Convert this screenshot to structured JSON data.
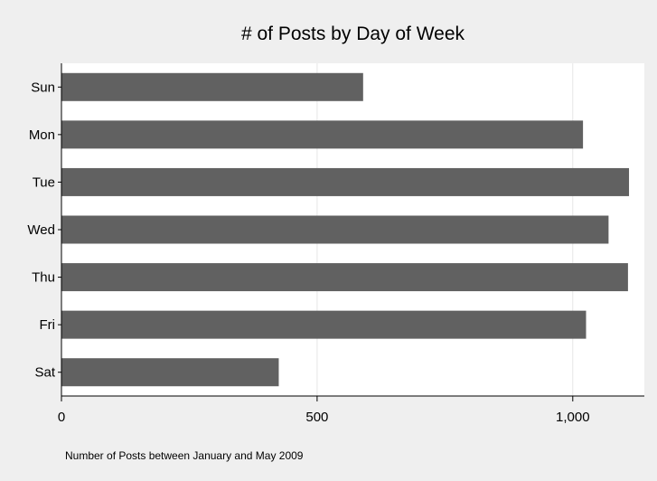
{
  "chart_data": {
    "type": "bar",
    "orientation": "horizontal",
    "title": "# of Posts by Day of Week",
    "note": "Number of Posts between January and May 2009",
    "categories": [
      "Sun",
      "Mon",
      "Tue",
      "Wed",
      "Thu",
      "Fri",
      "Sat"
    ],
    "values": [
      590,
      1020,
      1110,
      1070,
      1108,
      1026,
      425
    ],
    "xlim": [
      0,
      1140
    ],
    "x_ticks": [
      0,
      500,
      1000
    ],
    "x_tick_labels": [
      "0",
      "500",
      "1,000"
    ],
    "grid": true,
    "legend": "none",
    "colors": {
      "bar": "#616161",
      "background": "#efefef",
      "plot_background": "#ffffff",
      "grid": "#e6e6e6"
    }
  }
}
